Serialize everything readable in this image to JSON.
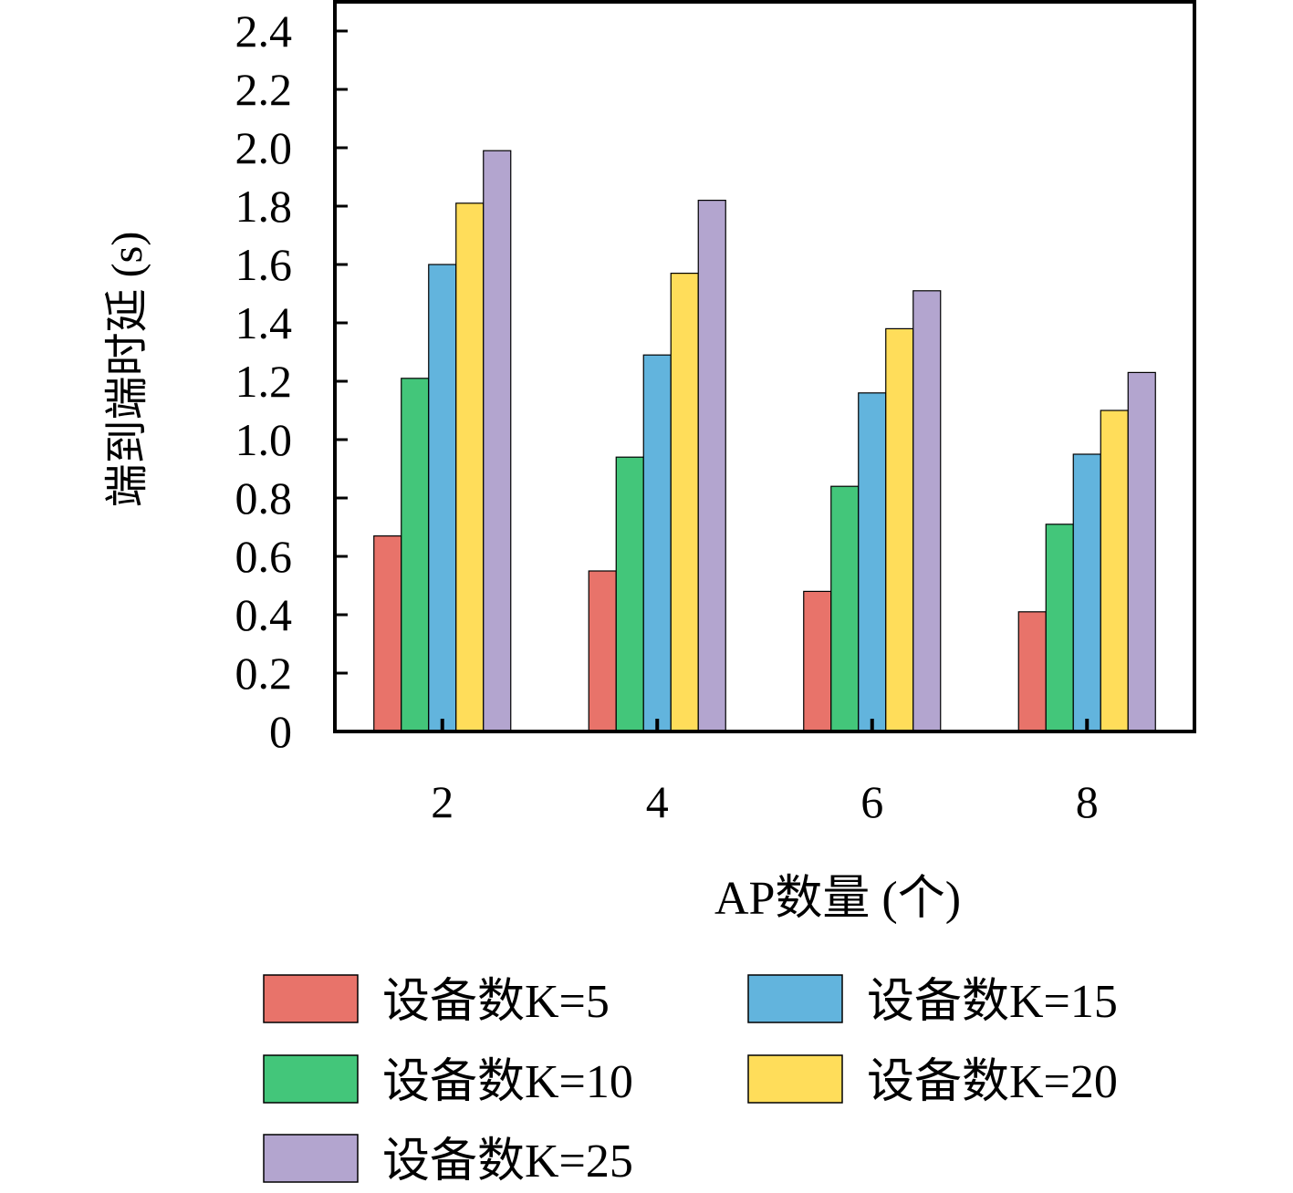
{
  "chart_data": {
    "type": "bar",
    "title": "",
    "xlabel": "AP数量 (个)",
    "ylabel": "端到端时延 (s)",
    "categories": [
      "2",
      "4",
      "6",
      "8"
    ],
    "ylim": [
      0,
      2.5
    ],
    "yticks": [
      0,
      0.2,
      0.4,
      0.6,
      0.8,
      1.0,
      1.2,
      1.4,
      1.6,
      1.8,
      2.0,
      2.2,
      2.4
    ],
    "ytick_labels": [
      "0",
      "0.2",
      "0.4",
      "0.6",
      "0.8",
      "1.0",
      "1.2",
      "1.4",
      "1.6",
      "1.8",
      "2.0",
      "2.2",
      "2.4"
    ],
    "grid": false,
    "legend_position": "bottom",
    "series": [
      {
        "name": "设备数K=5",
        "color": "#E8736A",
        "values": [
          0.67,
          0.55,
          0.48,
          0.41
        ]
      },
      {
        "name": "设备数K=10",
        "color": "#43C67A",
        "values": [
          1.21,
          0.94,
          0.84,
          0.71
        ]
      },
      {
        "name": "设备数K=15",
        "color": "#62B4DD",
        "values": [
          1.6,
          1.29,
          1.16,
          0.95
        ]
      },
      {
        "name": "设备数K=20",
        "color": "#FFDD5A",
        "values": [
          1.81,
          1.57,
          1.38,
          1.1
        ]
      },
      {
        "name": "设备数K=25",
        "color": "#B3A5CF",
        "values": [
          1.99,
          1.82,
          1.51,
          1.23
        ]
      }
    ]
  }
}
